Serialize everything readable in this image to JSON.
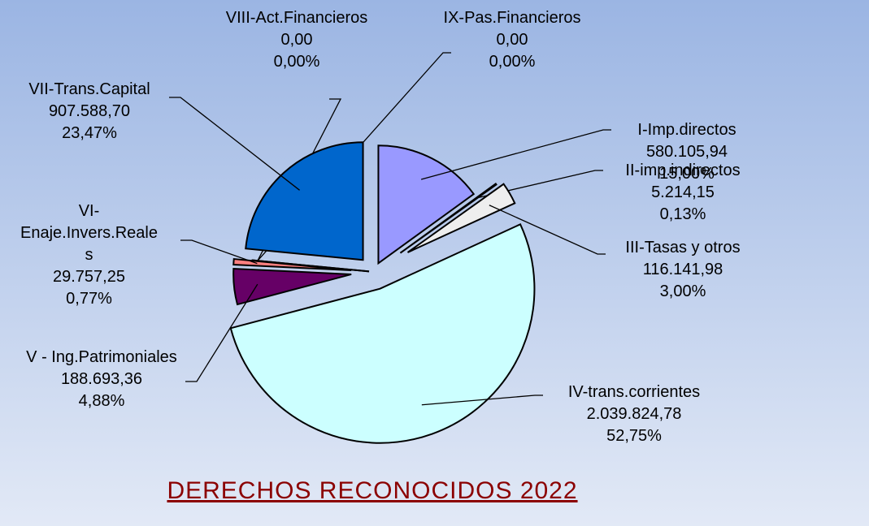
{
  "chart_data": {
    "type": "pie",
    "title": "DERECHOS RECONOCIDOS 2022",
    "categories": [
      "I-Imp.directos",
      "II-imp.indirectos",
      "III-Tasas y otros",
      "IV-trans.corrientes",
      "V - Ing.Patrimoniales",
      "VI-Enaje.Invers.Reales",
      "VIII-Act.Financieros",
      "IX-Pas.Financieros",
      "VII-Trans.Capital"
    ],
    "values": [
      580105.94,
      5214.15,
      116141.98,
      2039824.78,
      188693.36,
      29757.25,
      0,
      0,
      907588.7
    ],
    "value_labels": [
      "580.105,94",
      "5.214,15",
      "116.141,98",
      "2.039.824,78",
      "188.693,36",
      "29.757,25",
      "0,00",
      "0,00",
      "907.588,70"
    ],
    "percents": [
      15,
      0.13,
      3,
      52.75,
      4.88,
      0.77,
      0,
      0,
      23.47
    ],
    "percent_labels": [
      "15,00%",
      "0,13%",
      "3,00%",
      "52,75%",
      "4,88%",
      "0,77%",
      "0,00%",
      "0,00%",
      "23,47%"
    ],
    "colors": [
      "#9999ff",
      "#a0a0c0",
      "#eeeeee",
      "#ccffff",
      "#660066",
      "#ff8080",
      "#0066cc",
      "#0066cc",
      "#0066cc"
    ]
  }
}
